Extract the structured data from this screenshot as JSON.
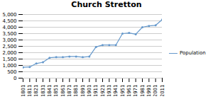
{
  "chart_data": {
    "type": "line",
    "title": "Church Stretton",
    "x": [
      1801,
      1811,
      1821,
      1831,
      1841,
      1851,
      1861,
      1871,
      1881,
      1891,
      1901,
      1911,
      1921,
      1931,
      1941,
      1951,
      1961,
      1971,
      1981,
      1991,
      2001,
      2011
    ],
    "series": [
      {
        "name": "Population",
        "color": "#6699CC",
        "values": [
          850,
          880,
          1150,
          1250,
          1600,
          1650,
          1650,
          1700,
          1700,
          1650,
          1700,
          2450,
          2600,
          2600,
          2600,
          3500,
          3550,
          3450,
          4000,
          4100,
          4150,
          4600
        ]
      }
    ],
    "xlim": [
      1801,
      2011
    ],
    "xticks": [
      1801,
      1811,
      1821,
      1831,
      1841,
      1851,
      1861,
      1871,
      1881,
      1891,
      1901,
      1911,
      1921,
      1931,
      1941,
      1951,
      1961,
      1971,
      1981,
      1991,
      2001,
      2011
    ],
    "ylim": [
      0,
      5000
    ],
    "yticks": [
      0,
      500,
      {
        "value": 1000,
        "label": "1,000"
      },
      {
        "value": 1500,
        "label": "1,500"
      },
      {
        "value": 2000,
        "label": "2,000"
      },
      {
        "value": 2500,
        "label": "2,500"
      },
      {
        "value": 3000,
        "label": "3,000"
      },
      {
        "value": 3500,
        "label": "3,500"
      },
      {
        "value": 4000,
        "label": "4,000"
      },
      {
        "value": 4500,
        "label": "4,500"
      },
      {
        "value": 5000,
        "label": "5,000"
      }
    ],
    "grid": true,
    "legend": "right",
    "marker": "circle"
  }
}
